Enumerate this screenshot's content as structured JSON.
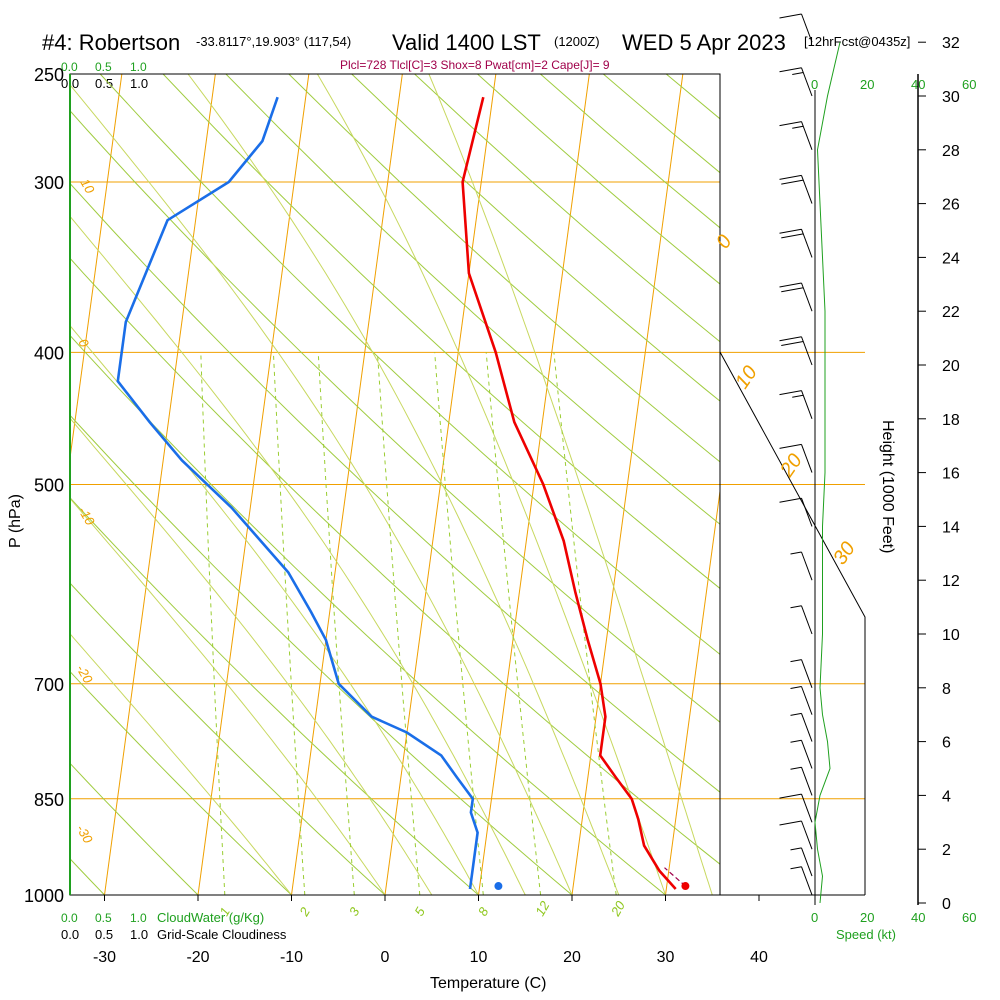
{
  "header": {
    "station": "#4: Robertson",
    "coords": "-33.8117°,19.903° (117,54)",
    "valid": "Valid 1400 LST",
    "zulu": "(1200Z)",
    "date": "WED 5 Apr 2023",
    "fcst": "[12hrFcst@0435z]"
  },
  "info_line": "Plcl=728 Tlcl[C]=3 Shox=8 Pwat[cm]=2 Cape[J]= 9",
  "cloud_scale": {
    "cloudwater_ticks": [
      "0.0",
      "0.5",
      "1.0"
    ],
    "cloudiness_ticks": [
      "0.0",
      "0.5",
      "1.0"
    ],
    "cloudwater_label": "CloudWater (g/Kg)",
    "cloudiness_label": "Grid-Scale Cloudiness"
  },
  "wind_scale": {
    "ticks": [
      "0",
      "20",
      "40",
      "60"
    ],
    "label": "Speed (kt)"
  },
  "colors": {
    "temperature": "#ee0000",
    "dewpoint": "#1a6ee8",
    "isotherm": "#f0a000",
    "dry_adiabat": "#a0cc40",
    "mixing_ratio": "#9acd32",
    "moist_adiabat": "#c8d860",
    "wind_speed": "#1fa01f",
    "info": "#a0004a"
  },
  "chart_data": {
    "type": "skew-t",
    "xlabel": "Temperature (C)",
    "ylabel": "P (hPa)",
    "y2label": "Height (1000 Feet)",
    "xlim": [
      -35,
      45
    ],
    "ylim_hpa": [
      1000,
      250
    ],
    "x_ticks": [
      -30,
      -20,
      -10,
      0,
      10,
      20,
      30,
      40
    ],
    "y_ticks_hpa": [
      250,
      300,
      400,
      500,
      700,
      850,
      1000
    ],
    "height_ticks_kft": [
      0,
      2,
      4,
      6,
      8,
      10,
      12,
      14,
      16,
      18,
      20,
      22,
      24,
      26,
      28,
      30,
      32
    ],
    "isotherm_labels": [
      {
        "text": "10",
        "c": 10
      },
      {
        "text": "0",
        "c": 0
      },
      {
        "text": "-10",
        "c": -10
      },
      {
        "text": "-20",
        "c": -20
      },
      {
        "text": "-30",
        "c": -30
      },
      {
        "text": "0",
        "c": 0
      },
      {
        "text": "10",
        "c": 10
      },
      {
        "text": "20",
        "c": 20
      },
      {
        "text": "30",
        "c": 30
      }
    ],
    "mixing_ratio_labels": [
      "1",
      "2",
      "3",
      "5",
      "8",
      "12",
      "20"
    ],
    "temperature": {
      "name": "Temperature",
      "p": [
        990,
        960,
        920,
        880,
        850,
        820,
        790,
        760,
        740,
        700,
        650,
        600,
        550,
        500,
        450,
        400,
        350,
        300,
        260
      ],
      "t": [
        31,
        29,
        27,
        26,
        25,
        23,
        21,
        21,
        21,
        20,
        18,
        16,
        14,
        11,
        7,
        4,
        0,
        -2,
        -1
      ]
    },
    "dewpoint": {
      "name": "Dewpoint",
      "p": [
        990,
        950,
        900,
        870,
        850,
        820,
        790,
        760,
        740,
        700,
        650,
        620,
        580,
        520,
        480,
        450,
        420,
        380,
        320,
        300,
        280,
        260
      ],
      "td": [
        9,
        9,
        9,
        8,
        8,
        6,
        4,
        0,
        -4,
        -8,
        -10,
        -12,
        -15,
        -22,
        -28,
        -32,
        -36,
        -36,
        -33,
        -27,
        -24,
        -23
      ]
    },
    "parcel_start": {
      "t": 32,
      "td": 12
    },
    "wind_speed_profile": {
      "height_kft": [
        0,
        1,
        2,
        3,
        4,
        5,
        6,
        7,
        8,
        10,
        12,
        14,
        16,
        18,
        20,
        22,
        24,
        26,
        28,
        30,
        32
      ],
      "speed_kt": [
        2,
        3,
        1,
        0,
        2,
        6,
        5,
        3,
        2,
        3,
        3,
        3,
        4,
        4,
        4,
        4,
        3,
        2,
        1,
        5,
        10
      ]
    },
    "wind_barbs": {
      "height_kft": [
        0.3,
        1,
        2,
        3,
        4,
        5,
        6,
        7,
        8,
        10,
        12,
        14,
        16,
        18,
        20,
        22,
        24,
        26,
        28,
        30,
        32
      ],
      "speed_kt": [
        5,
        5,
        10,
        10,
        5,
        5,
        5,
        5,
        5,
        5,
        5,
        10,
        10,
        15,
        20,
        20,
        20,
        20,
        15,
        15,
        10
      ]
    }
  }
}
